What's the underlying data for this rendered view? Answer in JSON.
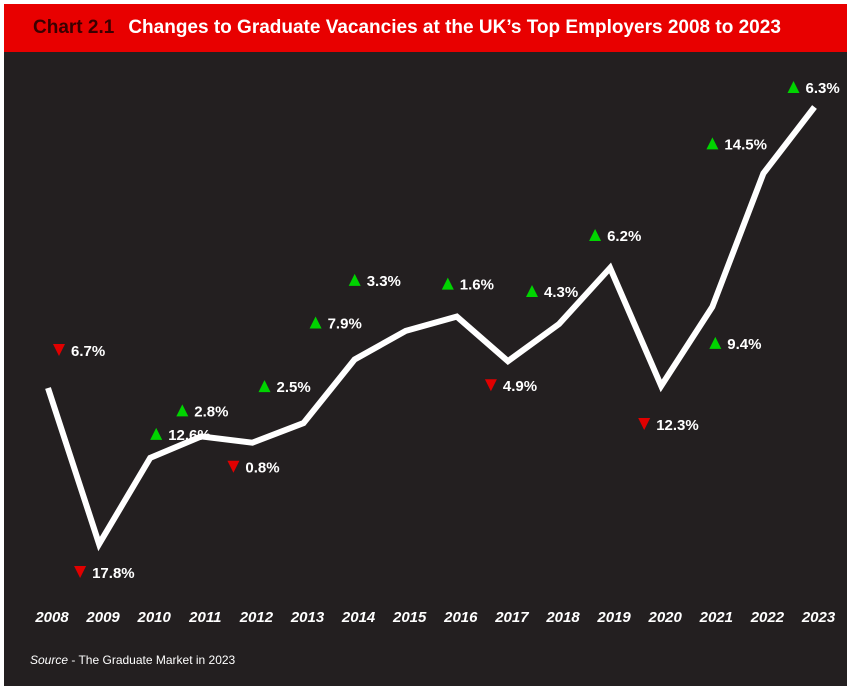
{
  "title": {
    "number": "Chart 2.1",
    "text": "Changes to Graduate Vacancies at the UK’s Top Employers 2008 to 2023"
  },
  "source": {
    "prefix": "Source",
    "text": " - The Graduate Market in 2023"
  },
  "colors": {
    "up": "#00d400",
    "down": "#e00000",
    "line": "#ffffff",
    "background": "#231f20",
    "title_bar": "#e80000"
  },
  "chart_data": {
    "type": "line",
    "title": "Changes to Graduate Vacancies at the UK’s Top Employers 2008 to 2023",
    "xlabel": "",
    "ylabel": "",
    "grid": false,
    "legend": "none",
    "categories": [
      "2008",
      "2009",
      "2010",
      "2011",
      "2012",
      "2013",
      "2014",
      "2015",
      "2016",
      "2017",
      "2018",
      "2019",
      "2020",
      "2021",
      "2022",
      "2023"
    ],
    "changes": [
      {
        "year": "2008",
        "direction": "down",
        "label": "6.7%",
        "value": -6.7
      },
      {
        "year": "2009",
        "direction": "down",
        "label": "17.8%",
        "value": -17.8
      },
      {
        "year": "2010",
        "direction": "up",
        "label": "12.6%",
        "value": 12.6
      },
      {
        "year": "2011",
        "direction": "up",
        "label": "2.8%",
        "value": 2.8
      },
      {
        "year": "2012",
        "direction": "down",
        "label": "0.8%",
        "value": -0.8
      },
      {
        "year": "2013",
        "direction": "up",
        "label": "2.5%",
        "value": 2.5
      },
      {
        "year": "2014",
        "direction": "up",
        "label": "7.9%",
        "value": 7.9
      },
      {
        "year": "2015",
        "direction": "up",
        "label": "3.3%",
        "value": 3.3
      },
      {
        "year": "2016",
        "direction": "up",
        "label": "1.6%",
        "value": 1.6
      },
      {
        "year": "2017",
        "direction": "down",
        "label": "4.9%",
        "value": -4.9
      },
      {
        "year": "2018",
        "direction": "up",
        "label": "4.3%",
        "value": 4.3
      },
      {
        "year": "2019",
        "direction": "up",
        "label": "6.2%",
        "value": 6.2
      },
      {
        "year": "2020",
        "direction": "down",
        "label": "12.3%",
        "value": -12.3
      },
      {
        "year": "2021",
        "direction": "up",
        "label": "9.4%",
        "value": 9.4
      },
      {
        "year": "2022",
        "direction": "up",
        "label": "14.5%",
        "value": 14.5
      },
      {
        "year": "2023",
        "direction": "up",
        "label": "6.3%",
        "value": 6.3
      }
    ]
  }
}
